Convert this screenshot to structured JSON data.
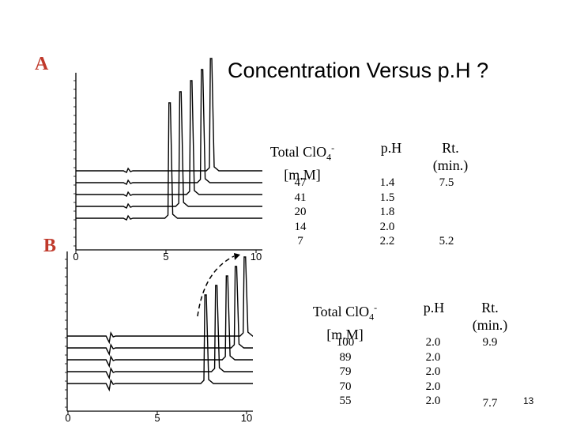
{
  "slide": {
    "title": "Concentration Versus p.H ?",
    "number": "13"
  },
  "panel_a": {
    "label": "A",
    "headers": {
      "concentration": "Total ClO4- [m.M]",
      "ph": "p.H",
      "rt": "Rt. (min.)"
    },
    "concentrations": [
      "47",
      "41",
      "20",
      "14",
      "7"
    ],
    "ph_values": [
      "1.4",
      "1.5",
      "1.8",
      "2.0",
      "2.2"
    ],
    "rt_top": "7.5",
    "rt_bottom": "5.2",
    "x_ticks": [
      "0",
      "5",
      "10"
    ]
  },
  "panel_b": {
    "label": "B",
    "headers": {
      "concentration": "Total ClO4- [m.M]",
      "ph": "p.H",
      "rt": "Rt. (min.)"
    },
    "concentrations": [
      "100",
      "89",
      "79",
      "70",
      "55"
    ],
    "ph_values": [
      "2.0",
      "2.0",
      "2.0",
      "2.0",
      "2.0"
    ],
    "rt_top": "9.9",
    "rt_bottom": "7.7",
    "x_ticks": [
      "0",
      "5",
      "10"
    ]
  },
  "chart_data": [
    {
      "type": "line",
      "xlim": [
        0,
        10
      ],
      "xlabel": "",
      "ylabel": "",
      "peaks_rt_min": [
        7.5,
        7.0,
        6.4,
        5.8,
        5.2
      ],
      "series_ph": [
        1.4,
        1.5,
        1.8,
        2.0,
        2.2
      ]
    },
    {
      "type": "line",
      "xlim": [
        0,
        10
      ],
      "xlabel": "",
      "ylabel": "",
      "peaks_rt_min": [
        9.9,
        9.4,
        8.9,
        8.3,
        7.7
      ],
      "series_concentration": [
        100,
        89,
        79,
        70,
        55
      ]
    }
  ]
}
